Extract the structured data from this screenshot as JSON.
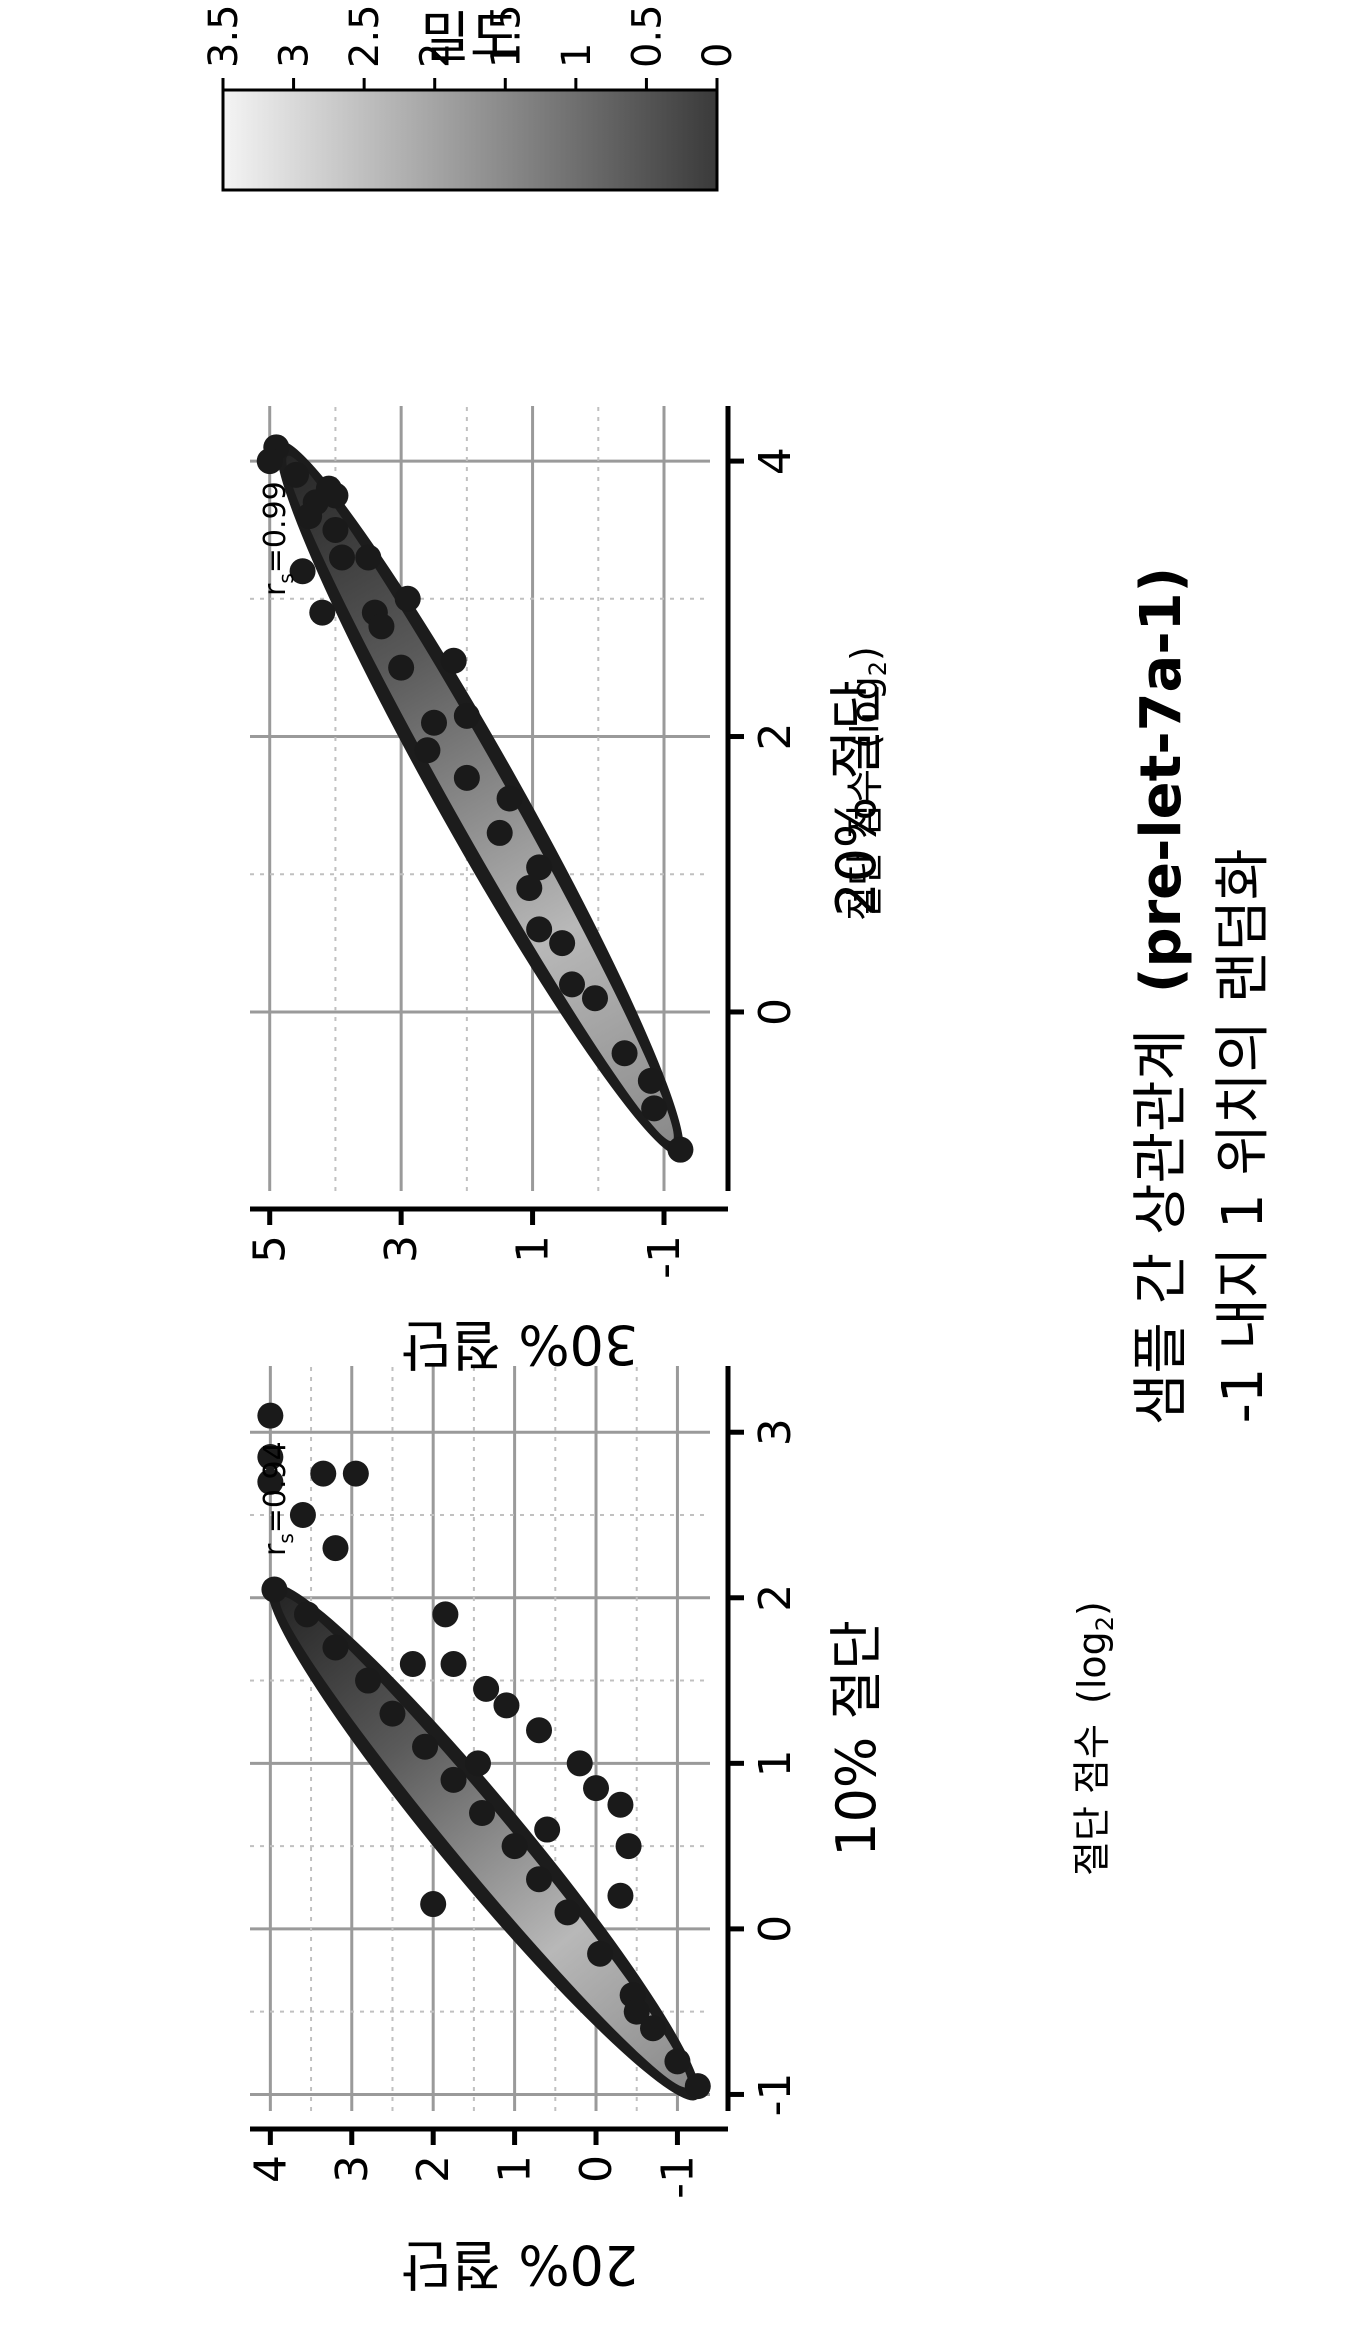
{
  "title_line1": "-1 내지 1 위치의 랜덤화",
  "title_line2": "샘플 간 상관관계",
  "title_line2_bold": "(pre-let-7a-1)",
  "panel_subtitle_text": "절단 점수",
  "panel_subtitle_unit": "(log",
  "panel_subtitle_sub": "2",
  "panel_subtitle_close": ")",
  "colorbar": {
    "label": "밀도",
    "ticks": [
      "0",
      "0.5",
      "1",
      "1.5",
      "2",
      "2.5",
      "3",
      "3.5"
    ],
    "range": [
      0,
      3.5
    ],
    "colors": [
      "#3a3a3a",
      "#f4f4f4"
    ]
  },
  "chart_data": [
    {
      "type": "scatter",
      "title": "",
      "xlabel": "10% 절단",
      "ylabel": "20% 절단",
      "xticks": [
        "-1",
        "0",
        "1",
        "2",
        "3"
      ],
      "yticks": [
        "-1",
        "0",
        "1",
        "2",
        "3",
        "4"
      ],
      "xlim": [
        -1.1,
        3.4
      ],
      "ylim": [
        -1.4,
        4.25
      ],
      "grid": true,
      "annotation": "r",
      "annotation_sub": "s",
      "annotation_value": "=0.94",
      "band": {
        "start": [
          -1,
          -1.2
        ],
        "end": [
          2.05,
          3.95
        ]
      },
      "points": [
        [
          -0.95,
          -1.25
        ],
        [
          -0.8,
          -1.0
        ],
        [
          -0.6,
          -0.7
        ],
        [
          -0.4,
          -0.45
        ],
        [
          -0.15,
          -0.05
        ],
        [
          0.1,
          0.35
        ],
        [
          0.3,
          0.7
        ],
        [
          0.5,
          1.0
        ],
        [
          0.7,
          1.4
        ],
        [
          0.9,
          1.75
        ],
        [
          1.1,
          2.1
        ],
        [
          1.3,
          2.5
        ],
        [
          1.5,
          2.8
        ],
        [
          1.7,
          3.2
        ],
        [
          1.9,
          3.55
        ],
        [
          2.05,
          3.95
        ],
        [
          0.15,
          2.0
        ],
        [
          0.75,
          -0.3
        ],
        [
          0.85,
          0.0
        ],
        [
          1.2,
          0.7
        ],
        [
          1.35,
          1.1
        ],
        [
          1.6,
          1.75
        ],
        [
          1.9,
          1.85
        ],
        [
          1.45,
          1.35
        ],
        [
          2.7,
          4.0
        ],
        [
          2.85,
          4.0
        ],
        [
          3.1,
          4.0
        ],
        [
          2.75,
          3.35
        ],
        [
          2.75,
          2.95
        ],
        [
          2.3,
          3.2
        ],
        [
          2.5,
          3.6
        ],
        [
          0.5,
          -0.4
        ],
        [
          1.0,
          0.2
        ],
        [
          0.2,
          -0.3
        ],
        [
          -0.5,
          -0.5
        ],
        [
          1.6,
          2.25
        ],
        [
          1.0,
          1.45
        ],
        [
          0.6,
          0.6
        ]
      ]
    },
    {
      "type": "scatter",
      "title": "",
      "xlabel": "20% 절단",
      "ylabel": "30% 절단",
      "xticks": [
        "0",
        "2",
        "4"
      ],
      "yticks": [
        "-1",
        "1",
        "3",
        "5"
      ],
      "xlim": [
        -1.3,
        4.4
      ],
      "ylim": [
        -1.7,
        5.3
      ],
      "grid": true,
      "annotation": "r",
      "annotation_sub": "s",
      "annotation_value": "=0.99",
      "band": {
        "start": [
          -1.0,
          -1.2
        ],
        "end": [
          4.1,
          4.8
        ]
      },
      "points": [
        [
          -1.0,
          -1.25
        ],
        [
          -0.7,
          -0.85
        ],
        [
          -0.3,
          -0.4
        ],
        [
          0.1,
          0.05
        ],
        [
          0.5,
          0.55
        ],
        [
          0.9,
          1.05
        ],
        [
          1.3,
          1.5
        ],
        [
          1.7,
          2.0
        ],
        [
          2.1,
          2.5
        ],
        [
          2.5,
          3.0
        ],
        [
          2.9,
          3.4
        ],
        [
          3.3,
          3.9
        ],
        [
          3.7,
          4.3
        ],
        [
          4.1,
          4.9
        ],
        [
          4.0,
          5.0
        ],
        [
          3.9,
          4.6
        ],
        [
          3.8,
          4.1
        ],
        [
          3.6,
          4.4
        ],
        [
          2.55,
          2.2
        ],
        [
          3.3,
          3.5
        ],
        [
          3.0,
          2.9
        ],
        [
          0.6,
          0.9
        ],
        [
          1.05,
          0.9
        ],
        [
          1.55,
          1.35
        ],
        [
          2.15,
          2.0
        ],
        [
          2.8,
          3.3
        ],
        [
          3.5,
          4.0
        ],
        [
          3.75,
          4.0
        ],
        [
          0.2,
          0.4
        ],
        [
          -0.5,
          -0.8
        ],
        [
          1.9,
          2.6
        ],
        [
          2.9,
          4.2
        ],
        [
          3.2,
          4.5
        ]
      ]
    }
  ]
}
